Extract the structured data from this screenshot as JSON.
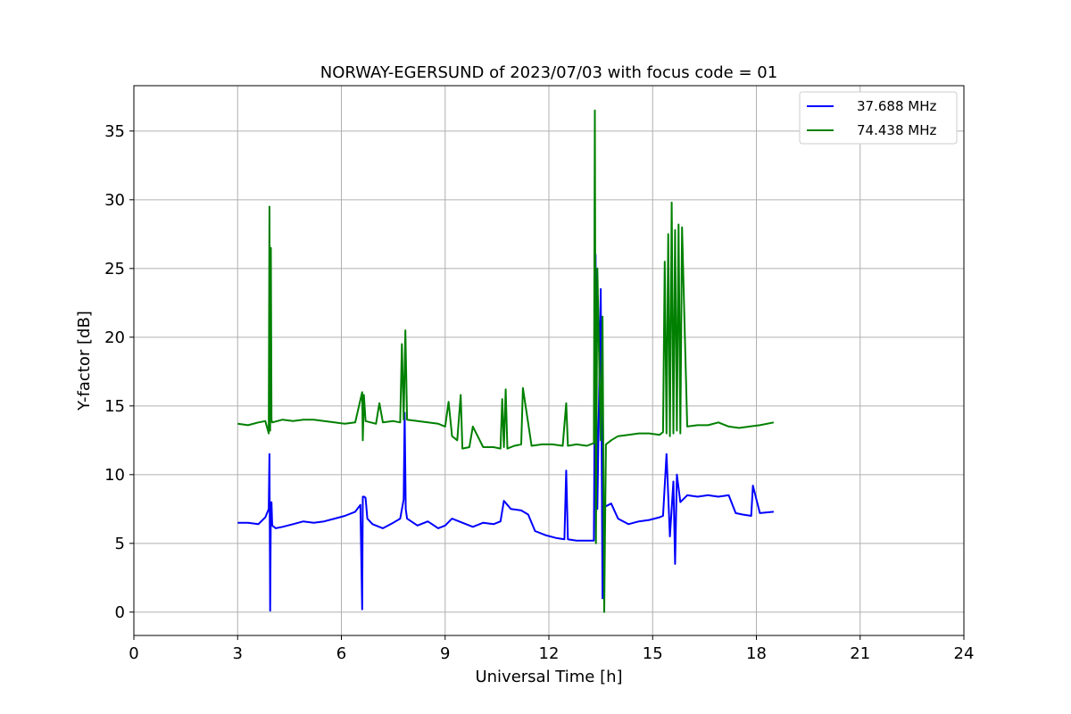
{
  "chart_data": {
    "type": "line",
    "title": "NORWAY-EGERSUND of 2023/07/03 with focus code = 01",
    "xlabel": "Universal Time [h]",
    "ylabel": "Y-factor [dB]",
    "xlim": [
      0,
      24
    ],
    "ylim": [
      -1.7,
      38.3
    ],
    "xticks": [
      0,
      3,
      6,
      9,
      12,
      15,
      18,
      21,
      24
    ],
    "yticks": [
      0,
      5,
      10,
      15,
      20,
      25,
      30,
      35
    ],
    "grid": true,
    "legend_position": "top-right",
    "series": [
      {
        "name": "37.688 MHz",
        "color": "#0000ff",
        "x": [
          3.0,
          3.3,
          3.6,
          3.8,
          3.9,
          3.92,
          3.94,
          3.96,
          3.98,
          4.0,
          4.1,
          4.3,
          4.6,
          4.9,
          5.2,
          5.5,
          5.8,
          6.1,
          6.4,
          6.55,
          6.6,
          6.62,
          6.66,
          6.7,
          6.75,
          6.9,
          7.2,
          7.5,
          7.7,
          7.8,
          7.83,
          7.86,
          7.9,
          8.2,
          8.5,
          8.8,
          9.0,
          9.2,
          9.5,
          9.8,
          10.1,
          10.4,
          10.6,
          10.7,
          10.9,
          11.2,
          11.4,
          11.6,
          11.9,
          12.2,
          12.45,
          12.5,
          12.55,
          12.8,
          13.1,
          13.3,
          13.35,
          13.4,
          13.5,
          13.55,
          13.6,
          13.65,
          13.8,
          14.0,
          14.3,
          14.6,
          14.9,
          15.2,
          15.3,
          15.4,
          15.5,
          15.6,
          15.65,
          15.7,
          15.8,
          16.0,
          16.3,
          16.6,
          16.9,
          17.2,
          17.4,
          17.6,
          17.85,
          17.9,
          18.1,
          18.5
        ],
        "values": [
          6.5,
          6.5,
          6.4,
          6.9,
          7.5,
          11.5,
          0.1,
          7.8,
          8.0,
          6.3,
          6.1,
          6.2,
          6.4,
          6.6,
          6.5,
          6.6,
          6.8,
          7.0,
          7.3,
          7.8,
          0.2,
          8.4,
          8.4,
          8.3,
          6.8,
          6.4,
          6.1,
          6.5,
          6.8,
          8.2,
          14.5,
          7.5,
          6.8,
          6.3,
          6.6,
          6.1,
          6.3,
          6.8,
          6.5,
          6.2,
          6.5,
          6.4,
          6.6,
          8.1,
          7.5,
          7.4,
          7.1,
          5.9,
          5.6,
          5.4,
          5.3,
          10.3,
          5.3,
          5.2,
          5.2,
          5.2,
          26.0,
          7.5,
          23.5,
          1.0,
          7.8,
          7.7,
          7.9,
          6.8,
          6.4,
          6.6,
          6.7,
          6.9,
          7.0,
          11.5,
          5.5,
          9.5,
          3.5,
          10.0,
          8.0,
          8.5,
          8.4,
          8.5,
          8.4,
          8.5,
          7.2,
          7.1,
          7.0,
          9.2,
          7.2,
          7.3
        ]
      },
      {
        "name": "74.438 MHz",
        "color": "#008000",
        "x": [
          3.0,
          3.3,
          3.6,
          3.8,
          3.9,
          3.92,
          3.94,
          3.96,
          3.98,
          4.0,
          4.3,
          4.6,
          4.9,
          5.2,
          5.5,
          5.8,
          6.1,
          6.4,
          6.6,
          6.62,
          6.65,
          6.7,
          7.0,
          7.1,
          7.2,
          7.5,
          7.7,
          7.75,
          7.8,
          7.85,
          7.9,
          8.2,
          8.5,
          8.8,
          9.0,
          9.1,
          9.2,
          9.35,
          9.45,
          9.5,
          9.7,
          9.8,
          10.1,
          10.4,
          10.6,
          10.65,
          10.7,
          10.75,
          10.8,
          11.0,
          11.2,
          11.25,
          11.5,
          11.8,
          12.1,
          12.4,
          12.5,
          12.55,
          12.8,
          13.1,
          13.3,
          13.33,
          13.36,
          13.4,
          13.5,
          13.55,
          13.6,
          13.65,
          13.8,
          14.0,
          14.3,
          14.6,
          14.9,
          15.2,
          15.3,
          15.35,
          15.4,
          15.45,
          15.5,
          15.55,
          15.6,
          15.65,
          15.7,
          15.75,
          15.8,
          15.85,
          16.0,
          16.3,
          16.6,
          16.9,
          17.2,
          17.5,
          17.8,
          18.1,
          18.5
        ],
        "values": [
          13.7,
          13.6,
          13.8,
          13.9,
          13.0,
          29.5,
          13.2,
          26.5,
          14.0,
          13.8,
          14.0,
          13.9,
          14.0,
          14.0,
          13.9,
          13.8,
          13.7,
          13.8,
          16.0,
          12.5,
          15.8,
          13.9,
          13.7,
          15.2,
          13.8,
          13.9,
          13.8,
          19.5,
          14.0,
          20.5,
          14.0,
          13.9,
          13.8,
          13.7,
          13.5,
          15.3,
          12.8,
          12.5,
          15.8,
          11.9,
          12.0,
          13.5,
          12.0,
          12.0,
          11.9,
          15.5,
          12.0,
          16.2,
          11.9,
          12.1,
          12.2,
          16.3,
          12.1,
          12.2,
          12.2,
          12.1,
          15.2,
          12.1,
          12.2,
          12.1,
          12.3,
          36.5,
          5.0,
          25.0,
          12.5,
          21.5,
          0.0,
          12.2,
          12.5,
          12.8,
          12.9,
          13.0,
          13.0,
          12.9,
          13.1,
          25.5,
          13.0,
          27.5,
          12.8,
          29.8,
          13.0,
          27.8,
          13.2,
          28.2,
          13.0,
          28.0,
          13.5,
          13.6,
          13.6,
          13.8,
          13.5,
          13.4,
          13.5,
          13.6,
          13.8
        ]
      }
    ]
  }
}
